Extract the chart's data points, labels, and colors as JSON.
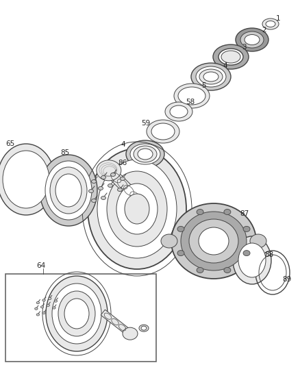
{
  "bg_color": "#ffffff",
  "line_color": "#444444",
  "label_color": "#222222",
  "font_size": 7.5,
  "fig_width": 4.38,
  "fig_height": 5.33
}
